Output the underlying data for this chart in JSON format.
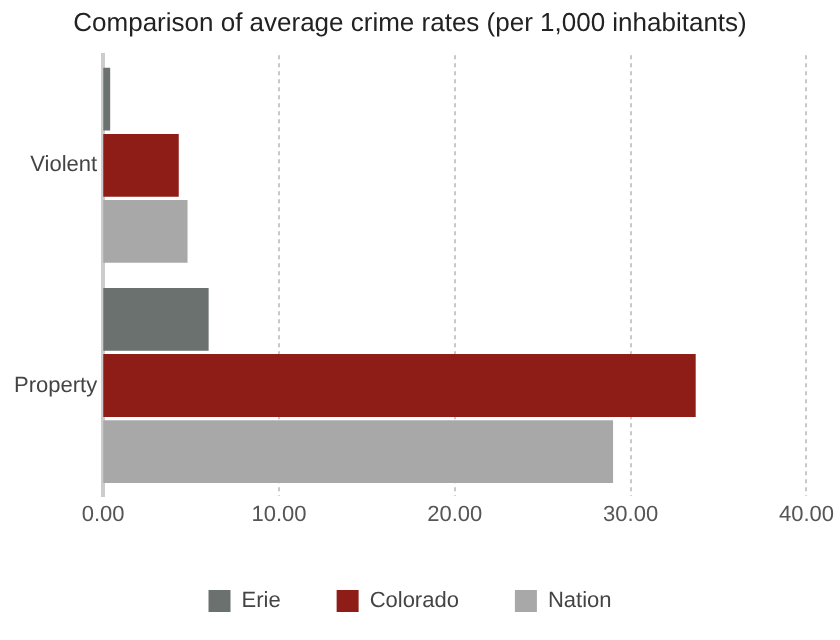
{
  "chart_data": {
    "type": "bar",
    "orientation": "horizontal",
    "title": "Comparison of average crime rates (per 1,000 inhabitants)",
    "categories": [
      "Violent",
      "Property"
    ],
    "series": [
      {
        "name": "Erie",
        "color": "#6b716e",
        "values": [
          0.4,
          6.0
        ]
      },
      {
        "name": "Colorado",
        "color": "#8f1d17",
        "values": [
          4.3,
          33.7
        ]
      },
      {
        "name": "Nation",
        "color": "#a8a8a8",
        "values": [
          4.8,
          29.0
        ]
      }
    ],
    "xlim": [
      0,
      40
    ],
    "xticks": [
      {
        "value": 0,
        "label": "0.00"
      },
      {
        "value": 10,
        "label": "10.00"
      },
      {
        "value": 20,
        "label": "20.00"
      },
      {
        "value": 30,
        "label": "30.00"
      },
      {
        "value": 40,
        "label": "40.00"
      }
    ],
    "grid": "x",
    "legend": "bottom"
  }
}
